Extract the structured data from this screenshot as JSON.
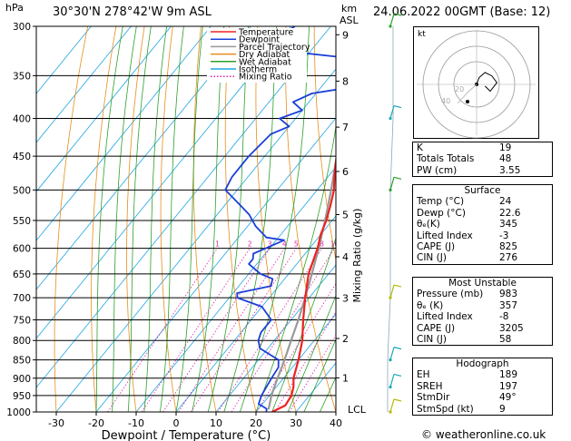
{
  "header": {
    "location": "30°30'N  278°42'W  9m  ASL",
    "datetime": "24.06.2022  00GMT  (Base: 12)",
    "hpa_label": "hPa",
    "km_label": "km",
    "asl_label": "ASL"
  },
  "chart_data": {
    "type": "line",
    "xlabel": "Dewpoint / Temperature (°C)",
    "ylabel_right": "Mixing Ratio (g/kg)",
    "xlim": [
      -35,
      40
    ],
    "ylim": [
      1000,
      300
    ],
    "y_scale": "log",
    "skew": true,
    "pressure_ticks": [
      300,
      350,
      400,
      450,
      500,
      550,
      600,
      650,
      700,
      750,
      800,
      850,
      900,
      950,
      1000
    ],
    "temperature_ticks": [
      -30,
      -20,
      -10,
      0,
      10,
      20,
      30,
      40
    ],
    "km_ticks": [
      {
        "label": "1",
        "p": 899
      },
      {
        "label": "2",
        "p": 795
      },
      {
        "label": "3",
        "p": 701
      },
      {
        "label": "4",
        "p": 616
      },
      {
        "label": "5",
        "p": 540
      },
      {
        "label": "6",
        "p": 472
      },
      {
        "label": "7",
        "p": 411
      },
      {
        "label": "8",
        "p": 356
      },
      {
        "label": "9",
        "p": 308
      }
    ],
    "lcl_label": "LCL",
    "lcl_p": 992,
    "mixing_ratio_labels": [
      "1",
      "2",
      "3",
      "4",
      "5",
      "8",
      "10",
      "15",
      "20",
      "25"
    ],
    "legend": [
      {
        "name": "Temperature",
        "color": "#ee2222"
      },
      {
        "name": "Dewpoint",
        "color": "#1a3fd8"
      },
      {
        "name": "Parcel Trajectory",
        "color": "#999999"
      },
      {
        "name": "Dry Adiabat",
        "color": "#e88d1b"
      },
      {
        "name": "Wet Adiabat",
        "color": "#2ca02c"
      },
      {
        "name": "Isotherm",
        "color": "#1fa5e6"
      },
      {
        "name": "Mixing Ratio",
        "color": "#dd22aa"
      }
    ],
    "series": [
      {
        "name": "Temperature",
        "points": [
          [
            1000,
            24
          ],
          [
            980,
            26
          ],
          [
            950,
            25.5
          ],
          [
            925,
            24.3
          ],
          [
            900,
            22.5
          ],
          [
            850,
            20
          ],
          [
            800,
            17
          ],
          [
            750,
            13
          ],
          [
            700,
            9
          ],
          [
            650,
            5
          ],
          [
            600,
            2
          ],
          [
            575,
            0
          ],
          [
            550,
            -1.5
          ],
          [
            525,
            -3.5
          ],
          [
            500,
            -5.8
          ],
          [
            475,
            -9
          ],
          [
            450,
            -12
          ],
          [
            425,
            -15
          ],
          [
            400,
            -18
          ],
          [
            375,
            -22
          ],
          [
            350,
            -26
          ],
          [
            325,
            -31
          ],
          [
            300,
            -34
          ]
        ]
      },
      {
        "name": "Dewpoint",
        "points": [
          [
            1000,
            22.6
          ],
          [
            990,
            22
          ],
          [
            975,
            19
          ],
          [
            950,
            18
          ],
          [
            925,
            17.5
          ],
          [
            900,
            17
          ],
          [
            870,
            16.5
          ],
          [
            850,
            15
          ],
          [
            820,
            8
          ],
          [
            800,
            6
          ],
          [
            780,
            5
          ],
          [
            750,
            5
          ],
          [
            720,
            0
          ],
          [
            700,
            -8
          ],
          [
            690,
            -9
          ],
          [
            675,
            -2
          ],
          [
            660,
            -3
          ],
          [
            650,
            -7
          ],
          [
            630,
            -12
          ],
          [
            620,
            -12
          ],
          [
            610,
            -13
          ],
          [
            600,
            -11
          ],
          [
            585,
            -8
          ],
          [
            580,
            -13
          ],
          [
            560,
            -18
          ],
          [
            540,
            -22
          ],
          [
            525,
            -26
          ],
          [
            500,
            -33
          ],
          [
            480,
            -34
          ],
          [
            450,
            -34
          ],
          [
            420,
            -33
          ],
          [
            410,
            -30
          ],
          [
            400,
            -34
          ],
          [
            390,
            -30
          ],
          [
            380,
            -34
          ],
          [
            370,
            -31
          ],
          [
            365,
            -25
          ],
          [
            355,
            -24
          ],
          [
            345,
            -28
          ],
          [
            330,
            -32
          ],
          [
            325,
            -44
          ],
          [
            315,
            -47
          ],
          [
            310,
            -52
          ],
          [
            305,
            -50
          ],
          [
            300,
            -49
          ]
        ]
      },
      {
        "name": "Parcel Trajectory",
        "points": [
          [
            992,
            22.6
          ],
          [
            950,
            20.5
          ],
          [
            900,
            18.5
          ],
          [
            850,
            16.5
          ],
          [
            800,
            14.2
          ],
          [
            750,
            11.8
          ],
          [
            700,
            9
          ],
          [
            650,
            5.8
          ],
          [
            600,
            2.3
          ],
          [
            550,
            -1.8
          ],
          [
            500,
            -6.5
          ],
          [
            450,
            -12
          ],
          [
            400,
            -18.5
          ],
          [
            350,
            -27
          ],
          [
            320,
            -32
          ]
        ]
      }
    ]
  },
  "wind_barbs": [
    {
      "p": 1000,
      "color": "#b8b800"
    },
    {
      "p": 925,
      "color": "#1aa6b7"
    },
    {
      "p": 850,
      "color": "#1aa6b7"
    },
    {
      "p": 700,
      "color": "#b8b800"
    },
    {
      "p": 500,
      "color": "#2ca02c"
    },
    {
      "p": 400,
      "color": "#1aa6b7"
    },
    {
      "p": 300,
      "color": "#2ca02c"
    }
  ],
  "hodograph": {
    "label": "kt",
    "ring_labels": [
      "20",
      "40"
    ],
    "points": [
      [
        0,
        0
      ],
      [
        3,
        8
      ],
      [
        10,
        14
      ],
      [
        18,
        10
      ],
      [
        24,
        2
      ],
      [
        16,
        -8
      ],
      [
        10,
        -2
      ]
    ],
    "gray_points": [
      [
        -10,
        -9
      ],
      [
        -22,
        -22
      ]
    ]
  },
  "indices": [
    {
      "label": "K",
      "value": "19"
    },
    {
      "label": "Totals Totals",
      "value": "48"
    },
    {
      "label": "PW (cm)",
      "value": "3.55"
    }
  ],
  "surface": {
    "title": "Surface",
    "rows": [
      {
        "label": "Temp (°C)",
        "value": "24"
      },
      {
        "label": "Dewp (°C)",
        "value": "22.6"
      },
      {
        "label": "θₑ(K)",
        "value": "345"
      },
      {
        "label": "Lifted Index",
        "value": "-3"
      },
      {
        "label": "CAPE (J)",
        "value": "825"
      },
      {
        "label": "CIN (J)",
        "value": "276"
      }
    ]
  },
  "most_unstable": {
    "title": "Most Unstable",
    "rows": [
      {
        "label": "Pressure (mb)",
        "value": "983"
      },
      {
        "label": "θₑ (K)",
        "value": "357"
      },
      {
        "label": "Lifted Index",
        "value": "-8"
      },
      {
        "label": "CAPE (J)",
        "value": "3205"
      },
      {
        "label": "CIN (J)",
        "value": "58"
      }
    ]
  },
  "hodograph_table": {
    "title": "Hodograph",
    "rows": [
      {
        "label": "EH",
        "value": "189"
      },
      {
        "label": "SREH",
        "value": "197"
      },
      {
        "label": "StmDir",
        "value": "49°"
      },
      {
        "label": "StmSpd (kt)",
        "value": "9"
      }
    ]
  },
  "footer": {
    "copyright": "© weatheronline.co.uk"
  }
}
